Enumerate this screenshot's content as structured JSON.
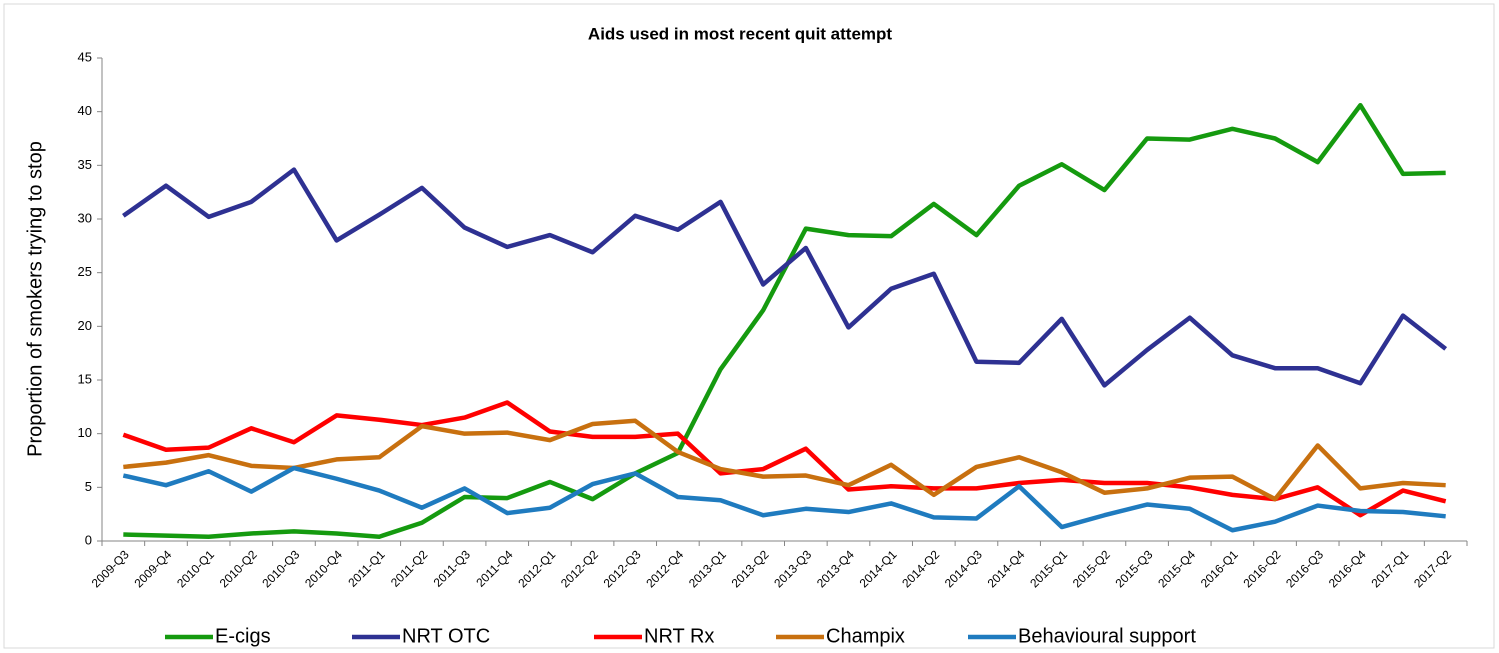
{
  "chart_data": {
    "type": "line",
    "title": "Aids used in most recent quit attempt",
    "y_label": "Proportion of smokers trying to stop",
    "categories": [
      "2009-Q3",
      "2009-Q4",
      "2010-Q1",
      "2010-Q2",
      "2010-Q3",
      "2010-Q4",
      "2011-Q1",
      "2011-Q2",
      "2011-Q3",
      "2011-Q4",
      "2012-Q1",
      "2012-Q2",
      "2012-Q3",
      "2012-Q4",
      "2013-Q1",
      "2013-Q2",
      "2013-Q3",
      "2013-Q4",
      "2014-Q1",
      "2014-Q2",
      "2014-Q3",
      "2014-Q4",
      "2015-Q1",
      "2015-Q2",
      "2015-Q3",
      "2015-Q4",
      "2016-Q1",
      "2016-Q2",
      "2016-Q3",
      "2016-Q4",
      "2017-Q1",
      "2017-Q2"
    ],
    "series": [
      {
        "name": "E-cigs",
        "color": "#159a0f",
        "values": [
          0.6,
          0.5,
          0.4,
          0.7,
          0.9,
          0.7,
          0.4,
          1.7,
          4.1,
          4.0,
          5.5,
          3.9,
          6.3,
          8.2,
          16.0,
          21.5,
          29.1,
          28.5,
          28.4,
          31.4,
          28.5,
          33.1,
          35.1,
          32.7,
          37.5,
          37.4,
          38.4,
          37.5,
          35.3,
          40.6,
          34.2,
          34.3
        ]
      },
      {
        "name": "NRT OTC",
        "color": "#2e3192",
        "values": [
          30.3,
          33.1,
          30.2,
          31.6,
          34.6,
          28.0,
          30.4,
          32.9,
          29.2,
          27.4,
          28.5,
          26.9,
          30.3,
          29.0,
          31.6,
          23.9,
          27.3,
          19.9,
          23.5,
          24.9,
          16.7,
          16.6,
          20.7,
          14.5,
          17.8,
          20.8,
          17.3,
          16.1,
          16.1,
          14.7,
          21.0,
          17.9
        ]
      },
      {
        "name": "NRT Rx",
        "color": "#ff0000",
        "values": [
          9.9,
          8.5,
          8.7,
          10.5,
          9.2,
          11.7,
          11.3,
          10.8,
          11.5,
          12.9,
          10.2,
          9.7,
          9.7,
          10.0,
          6.3,
          6.7,
          8.6,
          4.8,
          5.1,
          4.9,
          4.9,
          5.4,
          5.7,
          5.4,
          5.4,
          5.0,
          4.3,
          3.9,
          5.0,
          2.4,
          4.7,
          3.7
        ]
      },
      {
        "name": "Champix",
        "color": "#c8700f",
        "values": [
          6.9,
          7.3,
          8.0,
          7.0,
          6.8,
          7.6,
          7.8,
          10.7,
          10.0,
          10.1,
          9.4,
          10.9,
          11.2,
          8.3,
          6.7,
          6.0,
          6.1,
          5.2,
          7.1,
          4.3,
          6.9,
          7.8,
          6.4,
          4.5,
          4.9,
          5.9,
          6.0,
          3.9,
          8.9,
          4.9,
          5.4,
          5.2
        ]
      },
      {
        "name": "Behavioural support",
        "color": "#1f7bbf",
        "values": [
          6.1,
          5.2,
          6.5,
          4.6,
          6.8,
          5.8,
          4.7,
          3.1,
          4.9,
          2.6,
          3.1,
          5.3,
          6.3,
          4.1,
          3.8,
          2.4,
          3.0,
          2.7,
          3.5,
          2.2,
          2.1,
          5.1,
          1.3,
          2.4,
          3.4,
          3.0,
          1.0,
          1.8,
          3.3,
          2.8,
          2.7,
          2.3
        ]
      }
    ],
    "ylim": [
      0,
      45
    ],
    "yticks": [
      0,
      5,
      10,
      15,
      20,
      25,
      30,
      35,
      40,
      45
    ],
    "grid": false,
    "legend": "bottom"
  }
}
